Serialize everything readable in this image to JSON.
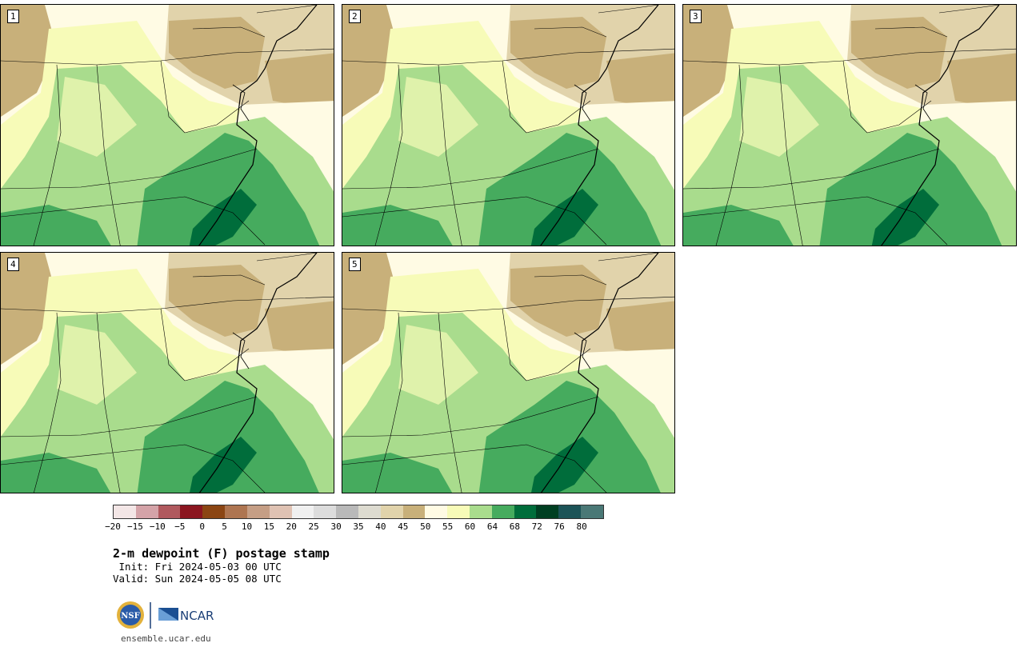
{
  "panels": [
    {
      "label": "1"
    },
    {
      "label": "2"
    },
    {
      "label": "3"
    },
    {
      "label": "4"
    },
    {
      "label": "5"
    }
  ],
  "colorbar": {
    "colors": [
      "#f3e6e6",
      "#d4a3a8",
      "#b0595e",
      "#8b1620",
      "#8b4513",
      "#ae7551",
      "#c59e85",
      "#dfc2b3",
      "#f0f0f0",
      "#dcdcdc",
      "#b9b9b9",
      "#dddbd0",
      "#e1d3ab",
      "#c8b07a",
      "#fffbe4",
      "#f7fbb8",
      "#a9dc8d",
      "#46ab5e",
      "#006d3b",
      "#003f22",
      "#1c5357",
      "#4a7876"
    ],
    "tick_labels": [
      "−20",
      "−15",
      "−10",
      "−5",
      "0",
      "5",
      "10",
      "15",
      "20",
      "25",
      "30",
      "35",
      "40",
      "45",
      "50",
      "55",
      "60",
      "64",
      "68",
      "72",
      "76",
      "80"
    ]
  },
  "title": "2-m dewpoint (F) postage stamp",
  "init": " Init: Fri 2024-05-03 00 UTC",
  "valid": "Valid: Sun 2024-05-05 08 UTC",
  "logos": {
    "nsf": "NSF",
    "ncar": "NCAR"
  },
  "url": "ensemble.ucar.edu"
}
